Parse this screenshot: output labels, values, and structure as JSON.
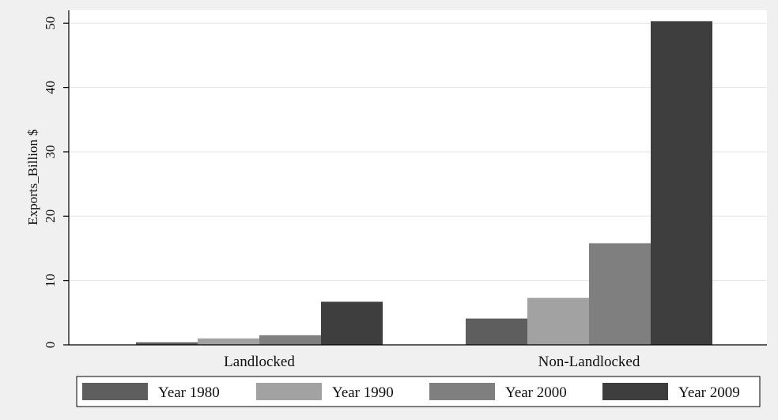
{
  "chart_data": {
    "type": "bar",
    "title": "",
    "xlabel": "",
    "ylabel": "Exports_Billion $",
    "ylim": [
      0,
      52
    ],
    "yticks": [
      0,
      10,
      20,
      30,
      40,
      50
    ],
    "grid": true,
    "legend_position": "bottom",
    "categories": [
      "Landlocked",
      "Non-Landlocked"
    ],
    "series": [
      {
        "name": "Year 1980",
        "values": [
          0.4,
          4.1
        ],
        "color": "#5e5e5e"
      },
      {
        "name": "Year 1990",
        "values": [
          1.0,
          7.3
        ],
        "color": "#a2a2a2"
      },
      {
        "name": "Year 2000",
        "values": [
          1.5,
          15.8
        ],
        "color": "#7f7f7f"
      },
      {
        "name": "Year 2009",
        "values": [
          6.7,
          50.3
        ],
        "color": "#3e3e3e"
      }
    ]
  }
}
